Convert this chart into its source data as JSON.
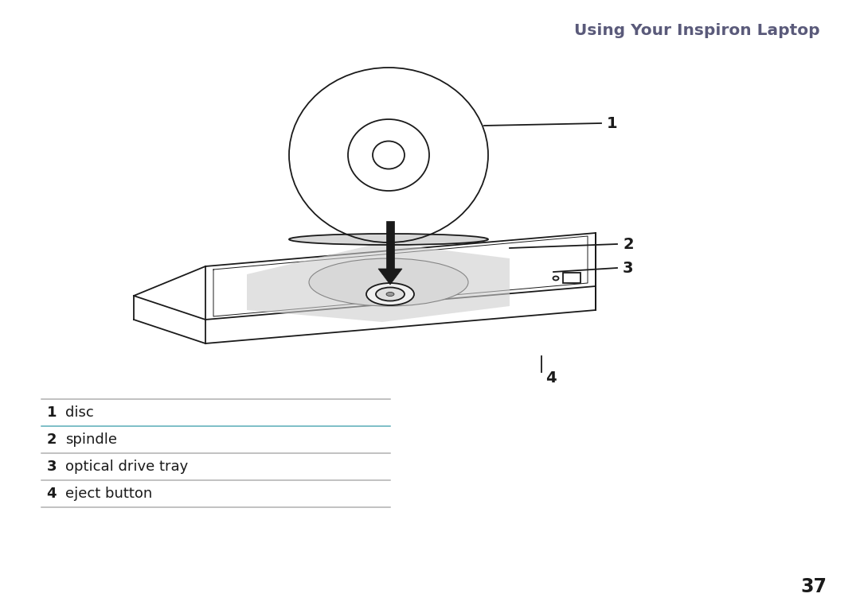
{
  "title": "Using Your Inspiron Laptop",
  "title_color": "#5a5a7a",
  "title_fontsize": 14.5,
  "title_bold": true,
  "bg_color": "#ffffff",
  "labels": [
    {
      "num": "1",
      "text": "disc"
    },
    {
      "num": "2",
      "text": "spindle"
    },
    {
      "num": "3",
      "text": "optical drive tray"
    },
    {
      "num": "4",
      "text": "eject button"
    }
  ],
  "label_num_color": "#1a1a1a",
  "label_text_color": "#1a1a1a",
  "label_num_fontsize": 13,
  "label_text_fontsize": 13,
  "divider_color_top": "#b0b0b0",
  "divider_color_cyan": "#5aacb8",
  "divider_color_gray": "#b0b0b0",
  "page_number": "37",
  "page_num_fontsize": 17,
  "page_num_color": "#1a1a1a",
  "line_color": "#1a1a1a",
  "line_lw": 1.3
}
